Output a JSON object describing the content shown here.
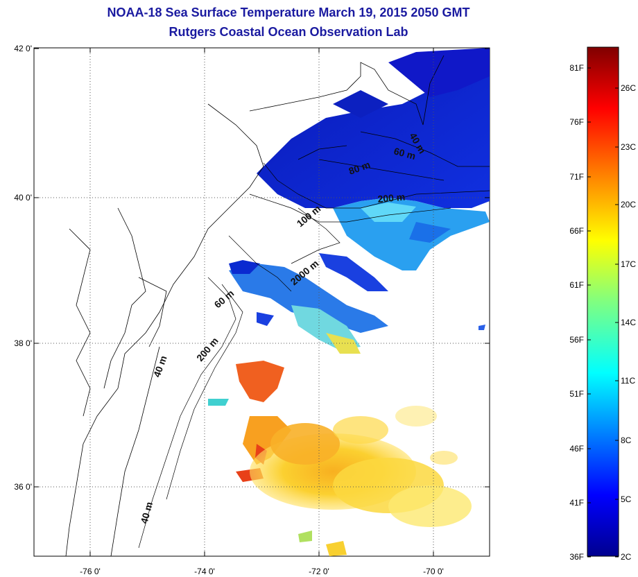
{
  "title": "NOAA-18 Sea Surface Temperature March 19, 2015 2050 GMT",
  "subtitle": "Rutgers Coastal Ocean Observation Lab",
  "map": {
    "lat_ticks": [
      "42 0'",
      "40 0'",
      "38 0'",
      "36 0'"
    ],
    "lon_ticks": [
      "-76 0'",
      "-74 0'",
      "-72 0'",
      "-70 0'"
    ],
    "grid": "dotted",
    "contour_labels": [
      "40 m",
      "60 m",
      "80 m",
      "200 m",
      "100 m",
      "2000 m",
      "60 m",
      "40 m",
      "200 m",
      "40 m"
    ]
  },
  "colorbar": {
    "fahrenheit_labels": [
      "81F",
      "76F",
      "71F",
      "66F",
      "61F",
      "56F",
      "51F",
      "46F",
      "41F",
      "36F"
    ],
    "celsius_labels": [
      "26C",
      "23C",
      "20C",
      "17C",
      "14C",
      "11C",
      "8C",
      "5C",
      "2C"
    ],
    "colors": [
      "#00008f",
      "#0000ff",
      "#0080ff",
      "#00ffff",
      "#80ff80",
      "#ffff00",
      "#ff8000",
      "#ff0000",
      "#800000"
    ]
  }
}
